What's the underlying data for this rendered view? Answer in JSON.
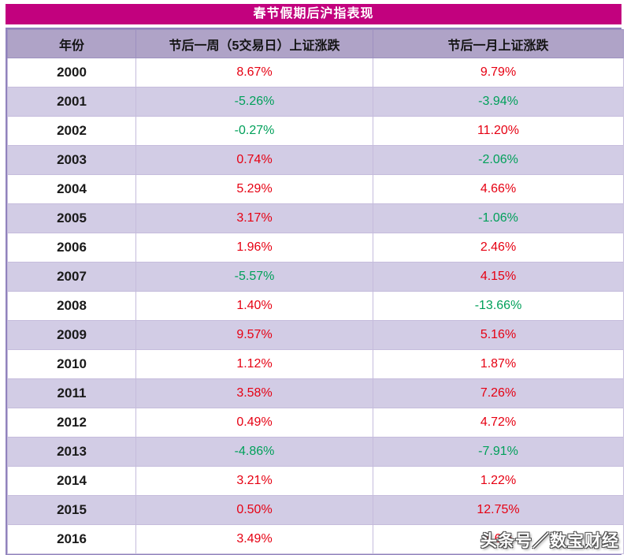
{
  "page": {
    "title": "春节假期后沪指表现",
    "watermark": "头条号／数宝财经"
  },
  "colors": {
    "title_bar": "#c2017e",
    "header_bg": "#afa3c7",
    "row_alt_bg": "#d2cce5",
    "border_outer": "#9183bd",
    "border_inner": "#c5bcdc",
    "positive_red": "#e60012",
    "negative_green": "#00a05a"
  },
  "chart_data": {
    "type": "table",
    "title": "春节假期后沪指表现",
    "columns": [
      "年份",
      "节后一周（5交易日）上证涨跌",
      "节后一月上证涨跌"
    ],
    "rows": [
      {
        "year": "2000",
        "week_change": "8.67%",
        "week_trend": "up",
        "month_change": "9.79%",
        "month_trend": "up"
      },
      {
        "year": "2001",
        "week_change": "-5.26%",
        "week_trend": "down",
        "month_change": "-3.94%",
        "month_trend": "down"
      },
      {
        "year": "2002",
        "week_change": "-0.27%",
        "week_trend": "down",
        "month_change": "11.20%",
        "month_trend": "up"
      },
      {
        "year": "2003",
        "week_change": "0.74%",
        "week_trend": "up",
        "month_change": "-2.06%",
        "month_trend": "down"
      },
      {
        "year": "2004",
        "week_change": "5.29%",
        "week_trend": "up",
        "month_change": "4.66%",
        "month_trend": "up"
      },
      {
        "year": "2005",
        "week_change": "3.17%",
        "week_trend": "up",
        "month_change": "-1.06%",
        "month_trend": "down"
      },
      {
        "year": "2006",
        "week_change": "1.96%",
        "week_trend": "up",
        "month_change": "2.46%",
        "month_trend": "up"
      },
      {
        "year": "2007",
        "week_change": "-5.57%",
        "week_trend": "down",
        "month_change": "4.15%",
        "month_trend": "up"
      },
      {
        "year": "2008",
        "week_change": "1.40%",
        "week_trend": "up",
        "month_change": "-13.66%",
        "month_trend": "down"
      },
      {
        "year": "2009",
        "week_change": "9.57%",
        "week_trend": "up",
        "month_change": "5.16%",
        "month_trend": "up"
      },
      {
        "year": "2010",
        "week_change": "1.12%",
        "week_trend": "up",
        "month_change": "1.87%",
        "month_trend": "up"
      },
      {
        "year": "2011",
        "week_change": "3.58%",
        "week_trend": "up",
        "month_change": "7.26%",
        "month_trend": "up"
      },
      {
        "year": "2012",
        "week_change": "0.49%",
        "week_trend": "up",
        "month_change": "4.72%",
        "month_trend": "up"
      },
      {
        "year": "2013",
        "week_change": "-4.86%",
        "week_trend": "down",
        "month_change": "-7.91%",
        "month_trend": "down"
      },
      {
        "year": "2014",
        "week_change": "3.21%",
        "week_trend": "up",
        "month_change": "1.22%",
        "month_trend": "up"
      },
      {
        "year": "2015",
        "week_change": "0.50%",
        "week_trend": "up",
        "month_change": "12.75%",
        "month_trend": "up"
      },
      {
        "year": "2016",
        "week_change": "3.49%",
        "week_trend": "up",
        "month_change": "1.6%",
        "month_trend": "up"
      }
    ]
  }
}
